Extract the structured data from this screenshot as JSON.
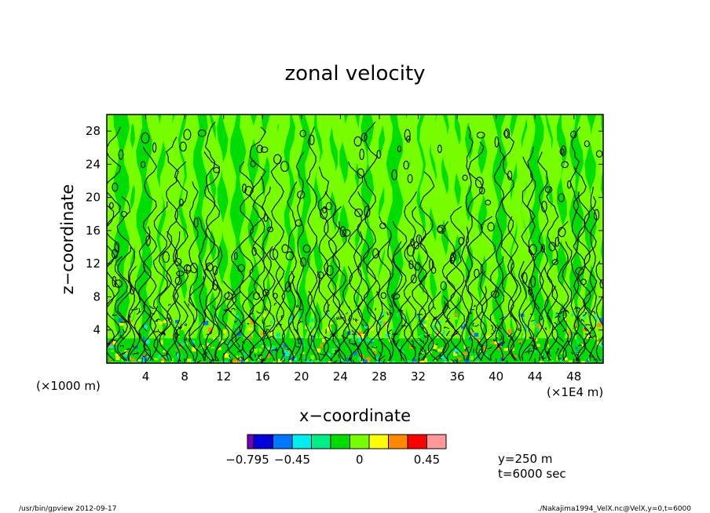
{
  "chart_data": {
    "type": "heatmap",
    "title": "zonal velocity",
    "xlabel": "x−coordinate",
    "ylabel": "z−coordinate",
    "x_unit_label": "(×1E4 m)",
    "y_unit_label": "(×1000 m)",
    "xlim": [
      0,
      51
    ],
    "ylim": [
      0,
      30
    ],
    "x_ticks": [
      4,
      8,
      12,
      16,
      20,
      24,
      28,
      32,
      36,
      40,
      44,
      48
    ],
    "y_ticks": [
      4,
      8,
      12,
      16,
      20,
      24,
      28
    ],
    "colorbar": {
      "colors": [
        "#7700bb",
        "#0000dd",
        "#0077ff",
        "#00eeee",
        "#00ee88",
        "#00dd00",
        "#77ff00",
        "#ffff00",
        "#ff8800",
        "#ff0000",
        "#ff9999"
      ],
      "tick_labels": [
        "−0.795",
        "−0.45",
        "0",
        "0.45"
      ]
    },
    "info_lines": [
      "y=250 m",
      "t=6000 sec"
    ]
  },
  "footer": {
    "left": "/usr/bin/gpview   2012-09-17",
    "right": "./Nakajima1994_VelX.nc@VelX,y=0,t=6000"
  },
  "colors": {
    "background_field": "#00dd00",
    "light_band": "#77ff00",
    "contour": "#000000"
  }
}
